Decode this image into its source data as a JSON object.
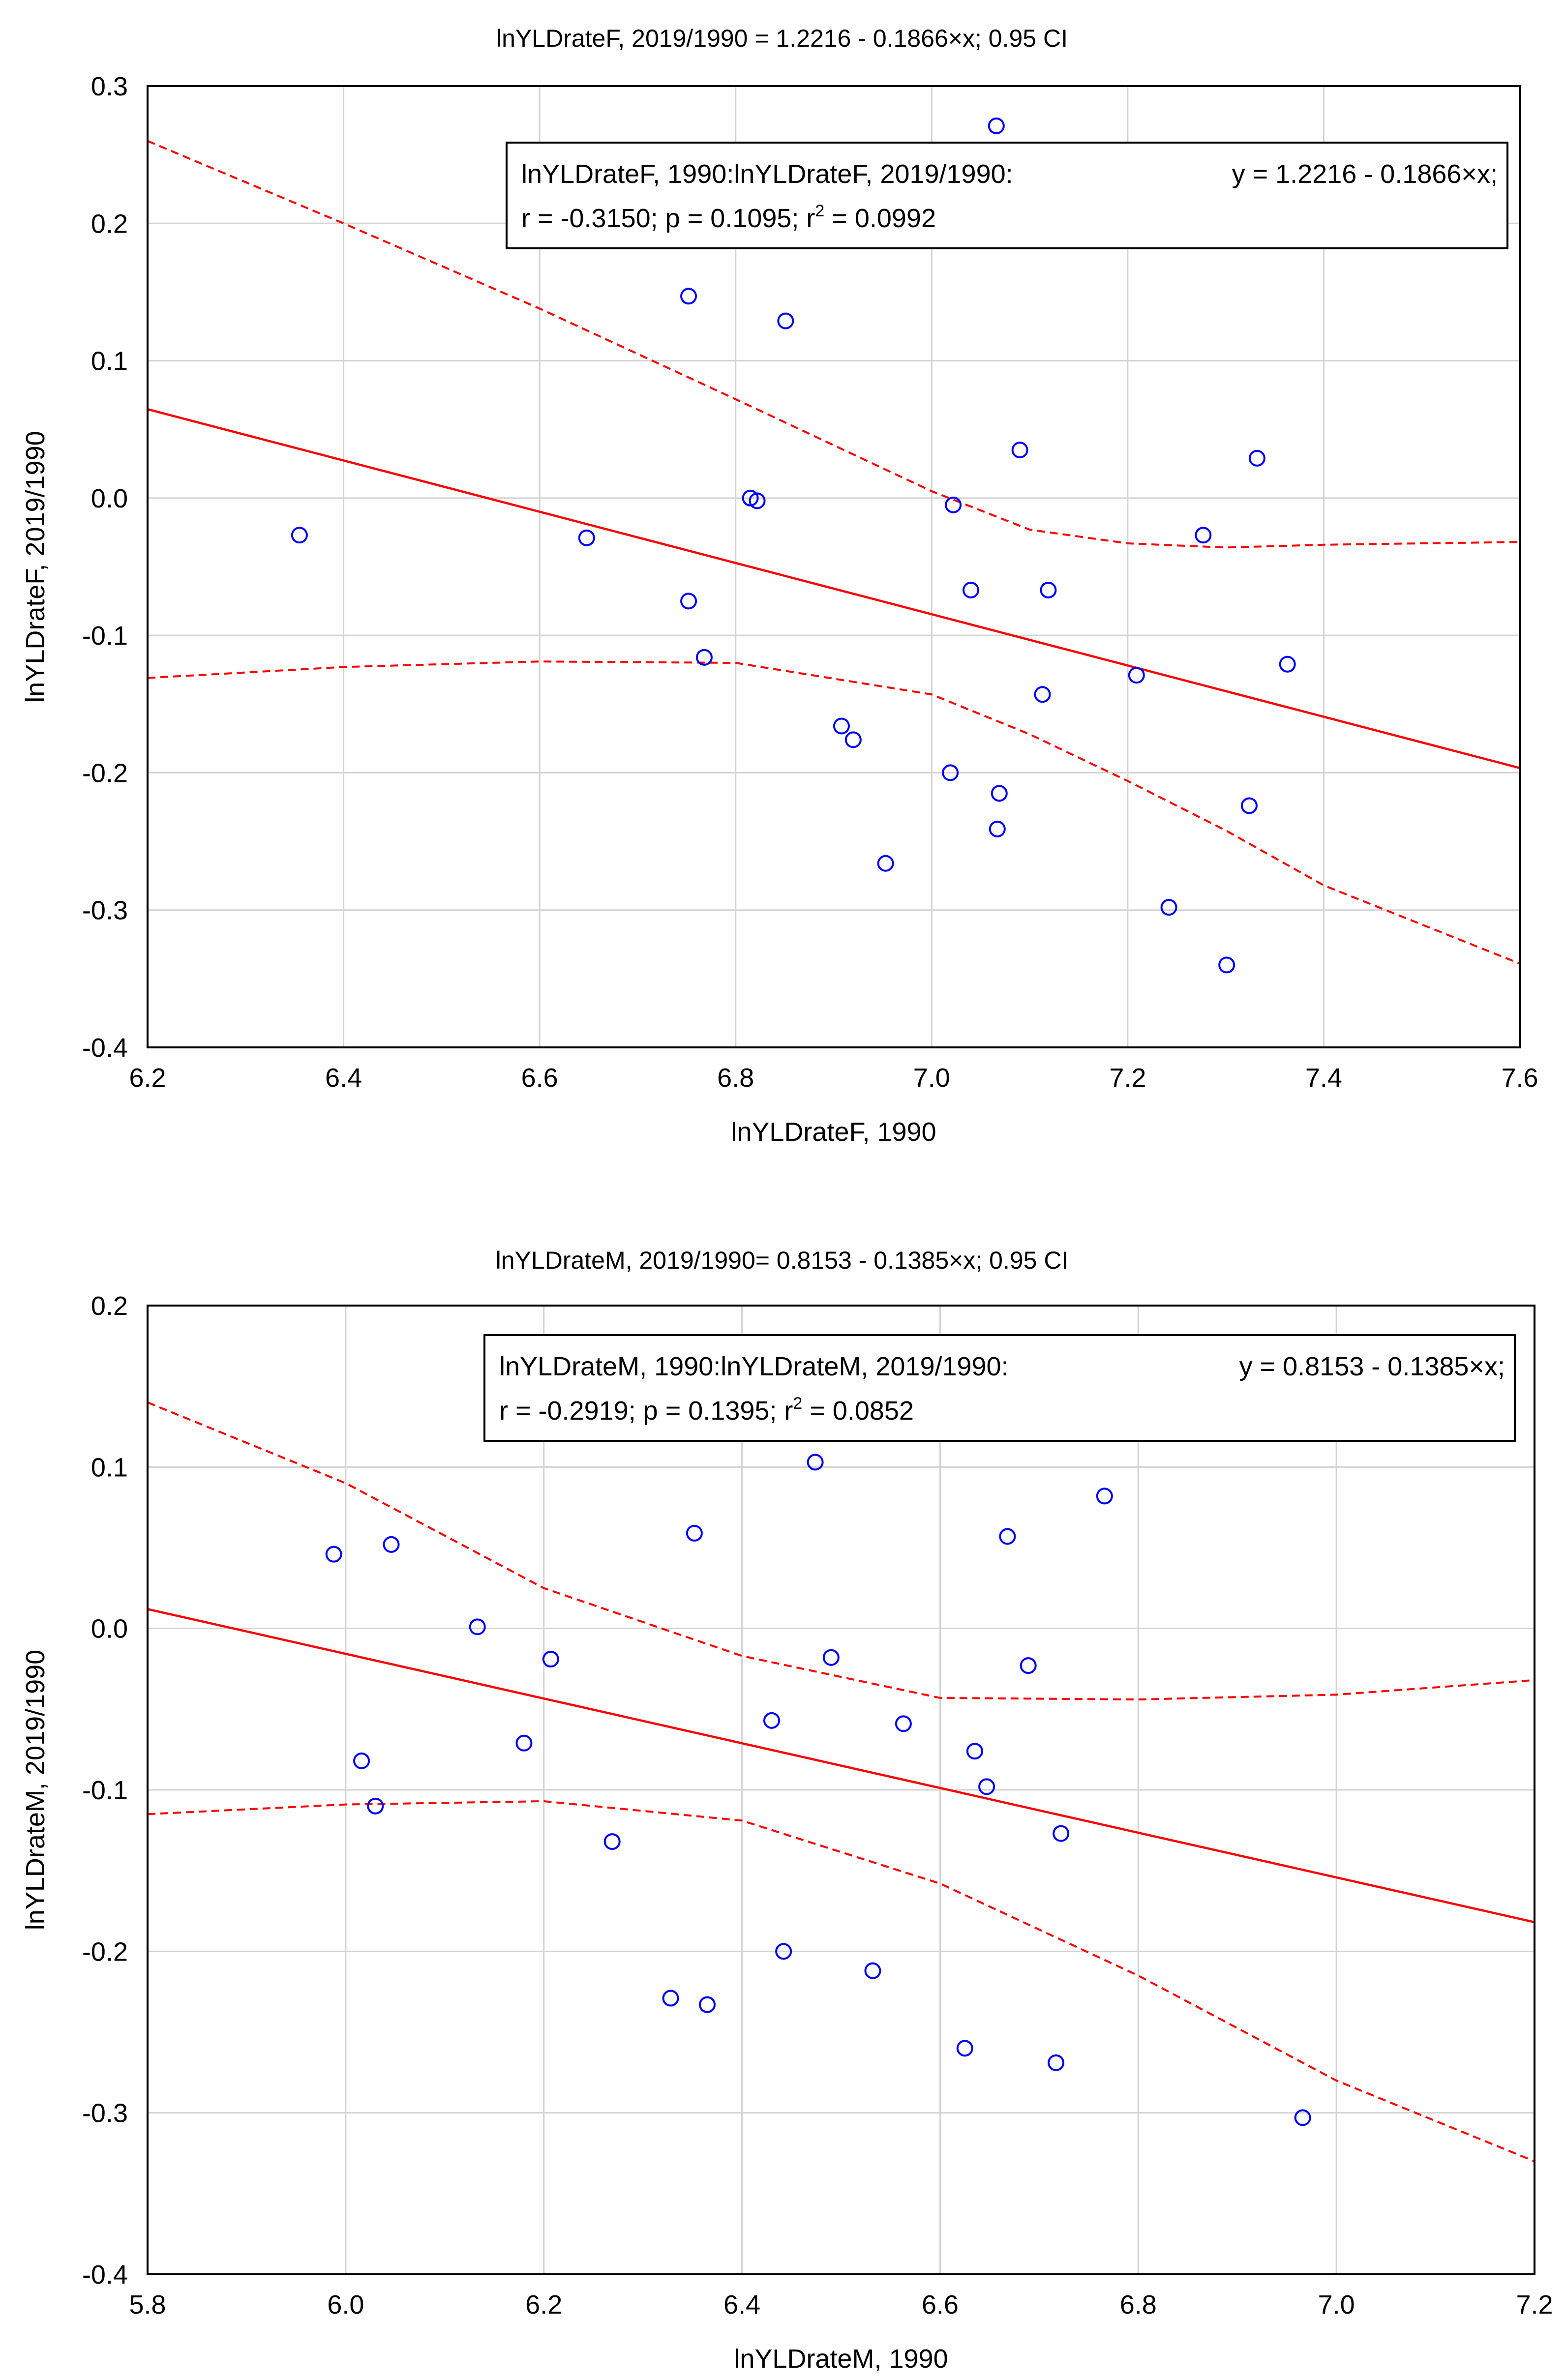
{
  "chart_data": [
    {
      "type": "scatter",
      "title": "lnYLDrateF, 2019/1990 = 1.2216 - 0.1866×x; 0.95 CI",
      "xlabel": "lnYLDrateF, 1990",
      "ylabel": "lnYLDrateF, 2019/1990",
      "xlim": [
        6.2,
        7.6
      ],
      "ylim": [
        -0.4,
        0.3
      ],
      "x_ticks": [
        "6.2",
        "6.4",
        "6.6",
        "6.8",
        "7.0",
        "7.2",
        "7.4",
        "7.6"
      ],
      "y_ticks": [
        "0.3",
        "0.2",
        "0.1",
        "0.0",
        "-0.1",
        "-0.2",
        "-0.3",
        "-0.4"
      ],
      "grid": true,
      "legend": {
        "position": "top-right",
        "line1_left": "lnYLDrateF, 1990:lnYLDrateF, 2019/1990:",
        "line1_right": "y = 1.2216 - 0.1866×x;",
        "line2_a": "r = -0.3150; p = 0.1095; r",
        "line2_sup": "2",
        "line2_b": " = 0.0992"
      },
      "regression": {
        "intercept": 1.2216,
        "slope": -0.1866
      },
      "ci_upper": [
        [
          6.2,
          0.26
        ],
        [
          6.4,
          0.2
        ],
        [
          6.6,
          0.138
        ],
        [
          6.8,
          0.072
        ],
        [
          7.0,
          0.005
        ],
        [
          7.1,
          -0.023
        ],
        [
          7.2,
          -0.033
        ],
        [
          7.3,
          -0.036
        ],
        [
          7.4,
          -0.034
        ],
        [
          7.6,
          -0.032
        ]
      ],
      "ci_lower": [
        [
          6.2,
          -0.131
        ],
        [
          6.4,
          -0.123
        ],
        [
          6.6,
          -0.119
        ],
        [
          6.8,
          -0.12
        ],
        [
          7.0,
          -0.143
        ],
        [
          7.1,
          -0.172
        ],
        [
          7.2,
          -0.206
        ],
        [
          7.3,
          -0.242
        ],
        [
          7.4,
          -0.282
        ],
        [
          7.6,
          -0.339
        ]
      ],
      "points": [
        [
          6.355,
          -0.027
        ],
        [
          6.648,
          -0.029
        ],
        [
          6.752,
          0.147
        ],
        [
          6.752,
          -0.075
        ],
        [
          6.768,
          -0.116
        ],
        [
          6.815,
          0.0
        ],
        [
          6.822,
          -0.002
        ],
        [
          6.851,
          0.129
        ],
        [
          6.908,
          -0.166
        ],
        [
          6.92,
          -0.176
        ],
        [
          6.953,
          -0.266
        ],
        [
          7.019,
          -0.2
        ],
        [
          7.022,
          -0.005
        ],
        [
          7.04,
          -0.067
        ],
        [
          7.066,
          0.271
        ],
        [
          7.067,
          -0.241
        ],
        [
          7.069,
          -0.215
        ],
        [
          7.09,
          0.035
        ],
        [
          7.113,
          -0.143
        ],
        [
          7.119,
          -0.067
        ],
        [
          7.209,
          -0.129
        ],
        [
          7.242,
          -0.298
        ],
        [
          7.277,
          -0.027
        ],
        [
          7.301,
          -0.34
        ],
        [
          7.324,
          -0.224
        ],
        [
          7.332,
          0.029
        ],
        [
          7.363,
          -0.121
        ]
      ],
      "colors": {
        "points": "#0000ff",
        "fit": "#ff0000",
        "grid": "#d3d3d3"
      }
    },
    {
      "type": "scatter",
      "title": "lnYLDrateM, 2019/1990= 0.8153 - 0.1385×x; 0.95 CI",
      "xlabel": "lnYLDrateM, 1990",
      "ylabel": "lnYLDrateM, 2019/1990",
      "xlim": [
        5.8,
        7.2
      ],
      "ylim": [
        -0.4,
        0.2
      ],
      "x_ticks": [
        "5.8",
        "6.0",
        "6.2",
        "6.4",
        "6.6",
        "6.8",
        "7.0",
        "7.2"
      ],
      "y_ticks": [
        "0.2",
        "0.1",
        "0.0",
        "-0.1",
        "-0.2",
        "-0.3",
        "-0.4"
      ],
      "grid": true,
      "legend": {
        "position": "top-right",
        "line1_left": "lnYLDrateM, 1990:lnYLDrateM, 2019/1990:",
        "line1_right": "y = 0.8153 - 0.1385×x;",
        "line2_a": "r = -0.2919; p = 0.1395; r",
        "line2_sup": "2",
        "line2_b": " = 0.0852"
      },
      "regression": {
        "intercept": 0.8153,
        "slope": -0.1385
      },
      "ci_upper": [
        [
          5.8,
          0.14
        ],
        [
          6.0,
          0.09
        ],
        [
          6.2,
          0.025
        ],
        [
          6.4,
          -0.017
        ],
        [
          6.6,
          -0.043
        ],
        [
          6.8,
          -0.044
        ],
        [
          7.0,
          -0.041
        ],
        [
          7.2,
          -0.032
        ]
      ],
      "ci_lower": [
        [
          5.8,
          -0.115
        ],
        [
          6.0,
          -0.109
        ],
        [
          6.2,
          -0.107
        ],
        [
          6.4,
          -0.119
        ],
        [
          6.6,
          -0.158
        ],
        [
          6.8,
          -0.215
        ],
        [
          7.0,
          -0.28
        ],
        [
          7.2,
          -0.33
        ]
      ],
      "points": [
        [
          5.988,
          0.046
        ],
        [
          6.016,
          -0.082
        ],
        [
          6.03,
          -0.11
        ],
        [
          6.046,
          0.052
        ],
        [
          6.133,
          0.001
        ],
        [
          6.18,
          -0.071
        ],
        [
          6.207,
          -0.019
        ],
        [
          6.269,
          -0.132
        ],
        [
          6.328,
          -0.229
        ],
        [
          6.352,
          0.059
        ],
        [
          6.365,
          -0.233
        ],
        [
          6.43,
          -0.057
        ],
        [
          6.442,
          -0.2
        ],
        [
          6.474,
          0.103
        ],
        [
          6.49,
          -0.018
        ],
        [
          6.532,
          -0.212
        ],
        [
          6.563,
          -0.059
        ],
        [
          6.625,
          -0.26
        ],
        [
          6.635,
          -0.076
        ],
        [
          6.647,
          -0.098
        ],
        [
          6.668,
          0.057
        ],
        [
          6.689,
          -0.023
        ],
        [
          6.717,
          -0.269
        ],
        [
          6.722,
          -0.127
        ],
        [
          6.766,
          0.082
        ],
        [
          6.966,
          -0.303
        ]
      ],
      "colors": {
        "points": "#0000ff",
        "fit": "#ff0000",
        "grid": "#d3d3d3"
      }
    }
  ]
}
